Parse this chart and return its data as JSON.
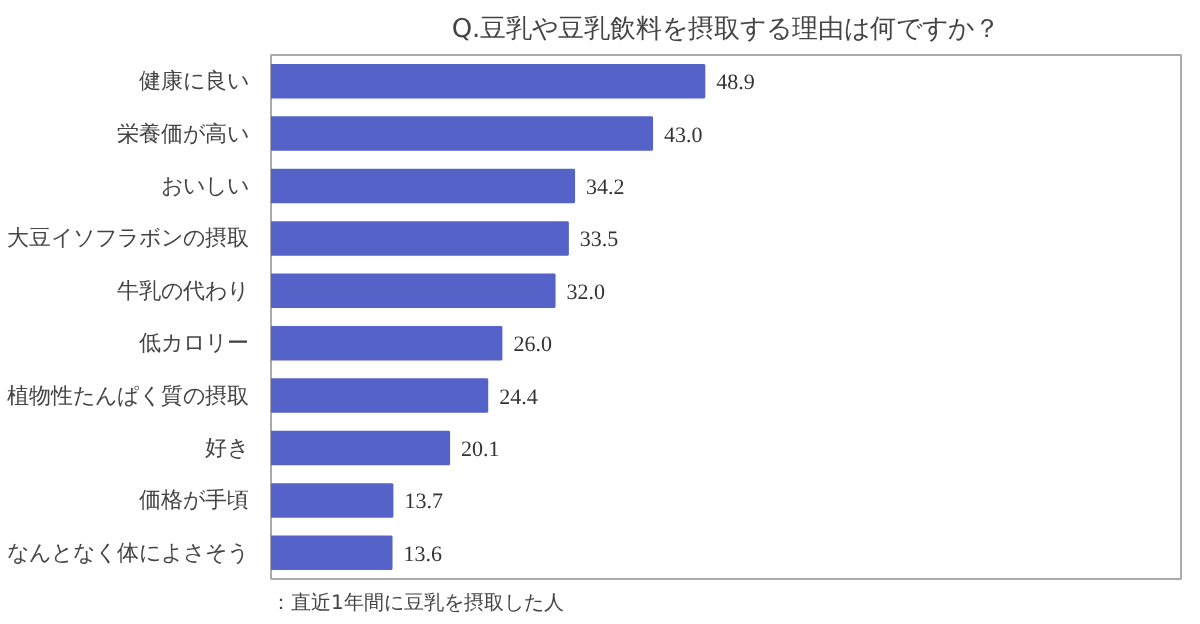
{
  "chart_data": {
    "type": "bar",
    "orientation": "horizontal",
    "title": "Q.豆乳や豆乳飲料を摂取する理由は何ですか？",
    "categories": [
      "健康に良い",
      "栄養価が高い",
      "おいしい",
      "大豆イソフラボンの摂取",
      "牛乳の代わり",
      "低カロリー",
      "植物性たんぱく質の摂取",
      "好き",
      "価格が手頃",
      "なんとなく体によさそう"
    ],
    "values": [
      48.9,
      43.0,
      34.2,
      33.5,
      32.0,
      26.0,
      24.4,
      20.1,
      13.7,
      13.6
    ],
    "value_labels": [
      "48.9",
      "43.0",
      "34.2",
      "33.5",
      "32.0",
      "26.0",
      "24.4",
      "20.1",
      "13.7",
      "13.6"
    ],
    "color": "#5563c8",
    "grid": false,
    "annotations": [
      "：直近1年間に豆乳を摂取した人"
    ]
  }
}
